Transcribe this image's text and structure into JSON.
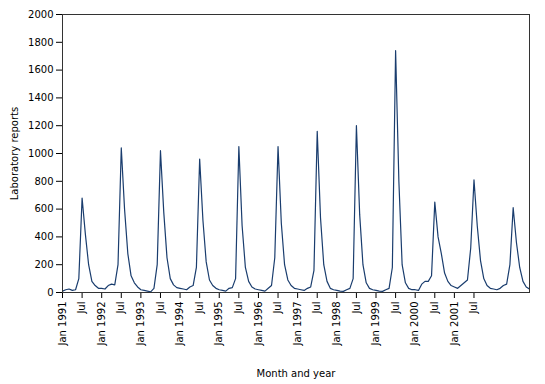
{
  "chart_data": {
    "type": "line",
    "xlabel": "Month and year",
    "ylabel": "Laboratory reports",
    "color": "#1a3d6e",
    "ylim": [
      0,
      2000
    ],
    "yticks": [
      0,
      200,
      400,
      600,
      800,
      1000,
      1200,
      1400,
      1600,
      1800,
      2000
    ],
    "categories": [
      "Jan 1991",
      null,
      null,
      null,
      null,
      null,
      "Jul",
      null,
      null,
      null,
      null,
      null,
      "Jan 1992",
      null,
      null,
      null,
      null,
      null,
      "Jul",
      null,
      null,
      null,
      null,
      null,
      "Jan 1993",
      null,
      null,
      null,
      null,
      null,
      "Jul",
      null,
      null,
      null,
      null,
      null,
      "Jan 1994",
      null,
      null,
      null,
      null,
      null,
      "Jul",
      null,
      null,
      null,
      null,
      null,
      "Jan 1995",
      null,
      null,
      null,
      null,
      null,
      "Jul",
      null,
      null,
      null,
      null,
      null,
      "Jan 1996",
      null,
      null,
      null,
      null,
      null,
      "Jul",
      null,
      null,
      null,
      null,
      null,
      "Jan 1997",
      null,
      null,
      null,
      null,
      null,
      "Jul",
      null,
      null,
      null,
      null,
      null,
      "Jan 1998",
      null,
      null,
      null,
      null,
      null,
      "Jul",
      null,
      null,
      null,
      null,
      null,
      "Jan 1999",
      null,
      null,
      null,
      null,
      null,
      "Jul",
      null,
      null,
      null,
      null,
      null,
      "Jan 2000",
      null,
      null,
      null,
      null,
      null,
      "Jul",
      null,
      null,
      null,
      null,
      null,
      "Jan 2001",
      null,
      null,
      null,
      null,
      null,
      "Jul",
      null,
      null,
      null,
      null,
      null,
      null,
      null,
      null,
      null,
      null,
      null,
      null,
      null,
      null,
      null,
      null,
      null
    ],
    "values": [
      10,
      20,
      25,
      15,
      20,
      100,
      680,
      420,
      200,
      80,
      50,
      30,
      30,
      25,
      50,
      60,
      55,
      200,
      1040,
      600,
      280,
      120,
      70,
      40,
      20,
      15,
      10,
      5,
      30,
      200,
      1020,
      580,
      250,
      100,
      55,
      35,
      30,
      25,
      20,
      40,
      50,
      180,
      960,
      520,
      220,
      90,
      50,
      30,
      20,
      15,
      10,
      30,
      35,
      100,
      1050,
      480,
      180,
      80,
      40,
      25,
      20,
      15,
      10,
      30,
      50,
      250,
      1050,
      500,
      200,
      90,
      50,
      30,
      25,
      20,
      15,
      30,
      40,
      160,
      1160,
      540,
      200,
      80,
      30,
      20,
      15,
      10,
      8,
      20,
      30,
      100,
      1200,
      560,
      200,
      70,
      30,
      20,
      15,
      10,
      8,
      20,
      30,
      180,
      1740,
      800,
      200,
      70,
      30,
      20,
      20,
      15,
      60,
      80,
      80,
      120,
      650,
      400,
      280,
      140,
      80,
      50,
      40,
      30,
      50,
      70,
      90,
      320,
      810,
      480,
      230,
      100,
      50,
      30,
      25,
      20,
      30,
      50,
      60,
      200,
      610,
      360,
      180,
      80,
      40,
      25
    ]
  }
}
